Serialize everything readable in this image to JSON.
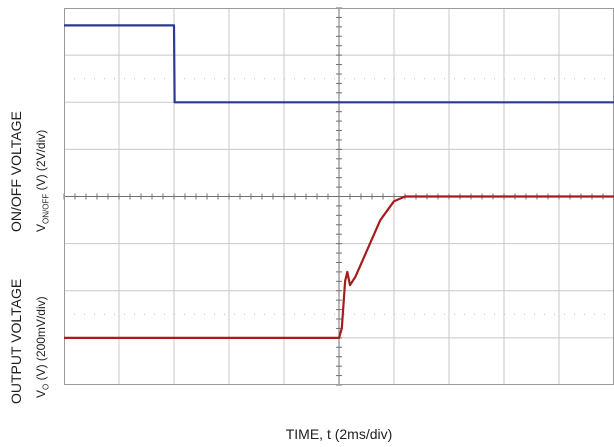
{
  "chart_data": {
    "type": "line",
    "xlabel": "TIME, t (2ms/div)",
    "ylabels": {
      "upper_main": "ON/OFF VOLTAGE",
      "upper_sub_prefix": "V",
      "upper_sub_subscript": "ON/OFF",
      "upper_sub_suffix": " (V) (2V/div)",
      "lower_main": "OUTPUT VOLTAGE",
      "lower_sub_prefix": "V",
      "lower_sub_subscript": "O",
      "lower_sub_suffix": " (V) (200mV/div)"
    },
    "x_divisions": 10,
    "y_divisions": 8,
    "xlim": [
      0,
      20
    ],
    "ylim": [
      0,
      8
    ],
    "grid": true,
    "series": [
      {
        "color": "#2b3a8c",
        "points": [
          [
            0,
            7.63
          ],
          [
            4.0,
            7.63
          ],
          [
            4.02,
            6.0
          ],
          [
            20,
            6.0
          ]
        ]
      },
      {
        "color": "#a51c1c",
        "points": [
          [
            0,
            1.0
          ],
          [
            10.0,
            1.0
          ],
          [
            10.1,
            1.2
          ],
          [
            10.22,
            2.2
          ],
          [
            10.3,
            2.4
          ],
          [
            10.4,
            2.12
          ],
          [
            10.6,
            2.3
          ],
          [
            11.5,
            3.5
          ],
          [
            12.0,
            3.9
          ],
          [
            12.4,
            4.0
          ],
          [
            20,
            4.0
          ]
        ]
      }
    ]
  }
}
